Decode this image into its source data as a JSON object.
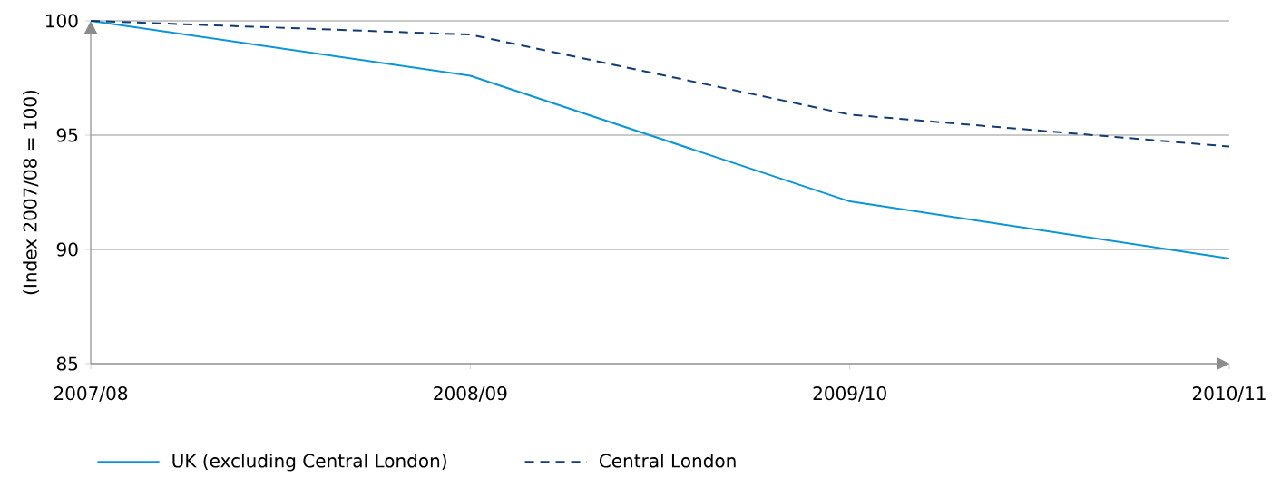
{
  "chart_data": {
    "type": "line",
    "ylabel": "(Index 2007/08 = 100)",
    "categories": [
      "2007/08",
      "2008/09",
      "2009/10",
      "2010/11"
    ],
    "series": [
      {
        "name": "UK (excluding Central London)",
        "color": "#0a96d6",
        "line_style": "solid",
        "values": [
          100,
          97.6,
          92.1,
          89.6
        ]
      },
      {
        "name": "Central London",
        "color": "#0f3d78",
        "line_style": "dashed",
        "values": [
          100,
          99.4,
          95.9,
          94.5
        ]
      }
    ],
    "ylim": [
      85,
      100
    ],
    "yticks": [
      85,
      90,
      95,
      100
    ],
    "grid": "y",
    "legend": "bottom"
  }
}
